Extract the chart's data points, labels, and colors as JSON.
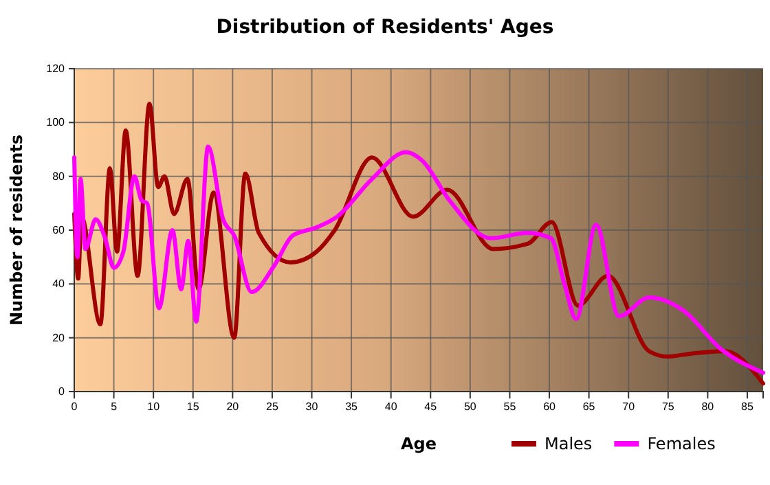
{
  "chart_data": {
    "type": "line",
    "title": "Distribution of Residents' Ages",
    "xlabel": "Age",
    "ylabel": "Number of residents",
    "xlim": [
      0,
      87
    ],
    "xticks": [
      0,
      5,
      10,
      15,
      20,
      25,
      30,
      35,
      40,
      45,
      50,
      55,
      60,
      65,
      70,
      75,
      80,
      85
    ],
    "ylim": [
      0,
      120
    ],
    "yticks": [
      0,
      20,
      40,
      60,
      80,
      100,
      120
    ],
    "grid": true,
    "legend": "bottom",
    "series": [
      {
        "name": "Males",
        "color": "#a00000",
        "x": [
          0,
          0.5,
          0.9,
          3.3,
          4.5,
          5.4,
          6.5,
          8,
          9.5,
          10.6,
          11.4,
          12.6,
          14.3,
          15.7,
          17.6,
          20.2,
          21.6,
          23.3,
          27.3,
          30.6,
          32.9,
          37.6,
          42.8,
          47.1,
          52.9,
          57.3,
          60.3,
          63.6,
          67.4,
          72.6,
          74.9,
          77.6,
          82.2,
          87
        ],
        "values": [
          66,
          42,
          65,
          25,
          83,
          52,
          97,
          43,
          107,
          76,
          80,
          66,
          79,
          38,
          74,
          20,
          81,
          59,
          48,
          52,
          60,
          87,
          65,
          75,
          53,
          55,
          63,
          32,
          43,
          15,
          13,
          14,
          15,
          3
        ]
      },
      {
        "name": "Females",
        "color": "#ff00ff",
        "x": [
          0,
          0.4,
          0.8,
          1.4,
          2.7,
          3.9,
          5,
          6.2,
          7.6,
          8.5,
          9.2,
          10.7,
          12.4,
          13.5,
          14.4,
          15.4,
          16.9,
          18.8,
          20.2,
          22.4,
          25.3,
          27.6,
          30.6,
          33.2,
          37.6,
          41.9,
          43.9,
          47.4,
          52.6,
          57.3,
          60.2,
          61.9,
          63.4,
          65.9,
          68.8,
          72.6,
          77,
          81.6,
          87
        ],
        "values": [
          87,
          50,
          79,
          53,
          64,
          57,
          46,
          52,
          80,
          71,
          70,
          31,
          60,
          38,
          56,
          26,
          91,
          64,
          58,
          37,
          47,
          58,
          61,
          65,
          79,
          89,
          86,
          71,
          57,
          59,
          57,
          40,
          27,
          62,
          28,
          35,
          30,
          16,
          7
        ]
      }
    ]
  }
}
